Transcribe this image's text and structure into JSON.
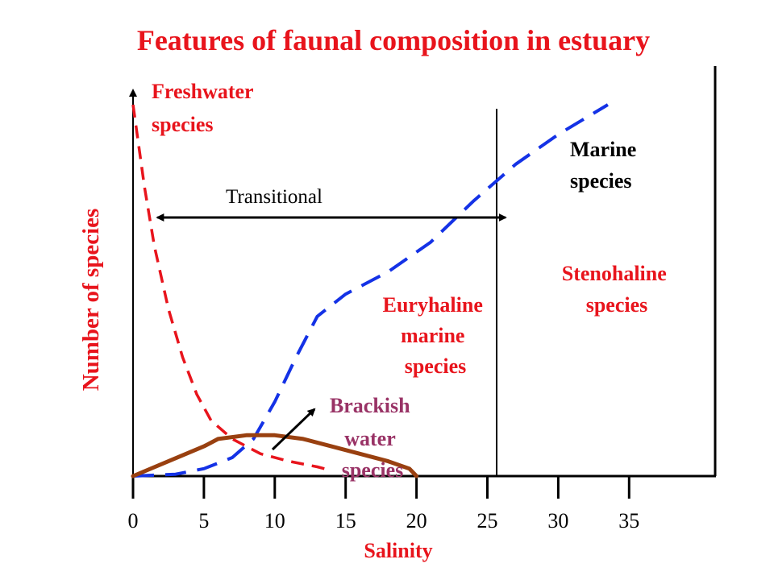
{
  "chart_data": {
    "type": "line",
    "title": "Features of faunal composition in estuary",
    "xlabel": "Salinity",
    "ylabel": "Number of species",
    "xlim": [
      0,
      40
    ],
    "ylim": [
      0,
      100
    ],
    "x_ticks": [
      0,
      5,
      10,
      15,
      20,
      25,
      30,
      35
    ],
    "x_tick_labels": [
      "0",
      "5",
      "10",
      "15",
      "20",
      "25",
      "30",
      "35"
    ],
    "dividers_x": [
      25,
      40
    ],
    "series": [
      {
        "style": "dashed",
        "color": "#e8141c",
        "points": [
          [
            0,
            100
          ],
          [
            0.8,
            78
          ],
          [
            1.5,
            62
          ],
          [
            2.5,
            45
          ],
          [
            3.5,
            32
          ],
          [
            4.5,
            22
          ],
          [
            5.5,
            15
          ],
          [
            7,
            10
          ],
          [
            9,
            6
          ],
          [
            11,
            4
          ],
          [
            13,
            2.5
          ],
          [
            14,
            1.5
          ]
        ]
      },
      {
        "style": "dashed",
        "color": "#1432e6",
        "points": [
          [
            0,
            0
          ],
          [
            3,
            0.5
          ],
          [
            5,
            2
          ],
          [
            7,
            5
          ],
          [
            8.5,
            10
          ],
          [
            10,
            20
          ],
          [
            11.5,
            32
          ],
          [
            13,
            43
          ],
          [
            15,
            49
          ],
          [
            18,
            55
          ],
          [
            21,
            63
          ],
          [
            24,
            74
          ],
          [
            27,
            84
          ],
          [
            30,
            92
          ],
          [
            33.5,
            100
          ]
        ]
      },
      {
        "style": "solid",
        "color": "#994010",
        "points": [
          [
            0,
            0
          ],
          [
            2.5,
            4
          ],
          [
            5,
            8
          ],
          [
            6,
            10
          ],
          [
            8,
            11
          ],
          [
            10,
            11
          ],
          [
            12,
            10
          ],
          [
            14,
            8
          ],
          [
            16,
            6
          ],
          [
            18,
            4
          ],
          [
            19.5,
            2
          ],
          [
            20,
            0
          ]
        ]
      }
    ],
    "annotations": {
      "freshwater": [
        "Freshwater",
        "species"
      ],
      "marine": [
        "Marine",
        "species"
      ],
      "transitional": "Transitional",
      "transitional_range": [
        1.5,
        26.5
      ],
      "stenohaline": [
        "Stenohaline",
        "species"
      ],
      "euryhaline": [
        "Euryhaline",
        "marine",
        "species"
      ],
      "brackish": [
        "Brackish",
        "water",
        "species"
      ]
    },
    "grid": false,
    "colors": {
      "title": "#e8141c",
      "freshwater": "#e8141c",
      "euryhaline": "#e8141c",
      "stenohaline": "#e8141c",
      "brackish": "#993366",
      "axis": "#000000"
    }
  }
}
